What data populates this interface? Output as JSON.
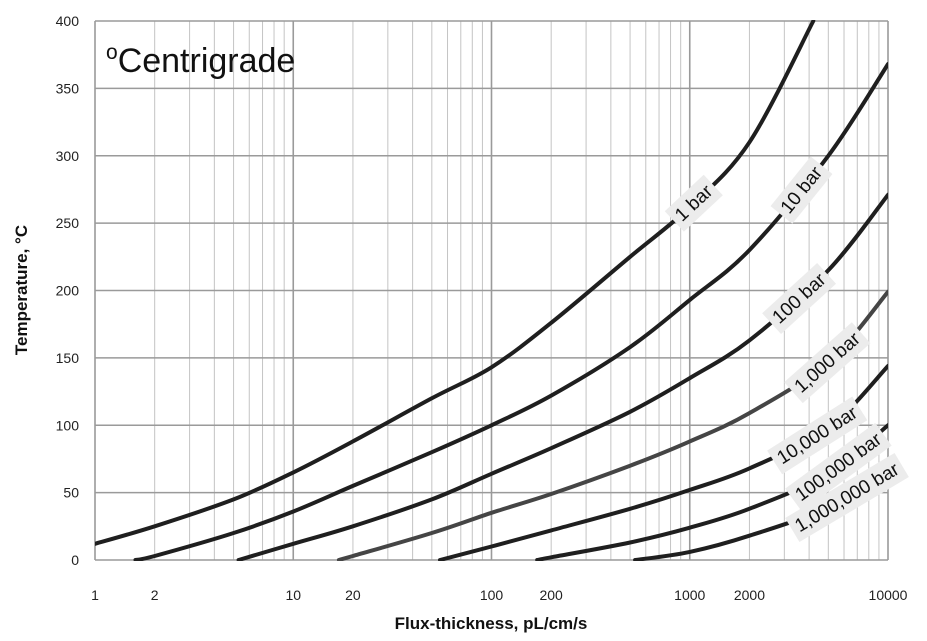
{
  "chart_data": {
    "type": "line",
    "title": "",
    "annotation": {
      "prefix": "o",
      "text": "Centrigrade"
    },
    "xlabel": "Flux-thickness, pL/cm/s",
    "ylabel": "Temperature, °C",
    "xscale": "log",
    "xlim": [
      1,
      10000
    ],
    "ylim": [
      0,
      400
    ],
    "grid": true,
    "x_ticks": [
      {
        "value": 1,
        "label": "1"
      },
      {
        "value": 2,
        "label": "2"
      },
      {
        "value": 10,
        "label": "10"
      },
      {
        "value": 20,
        "label": "20"
      },
      {
        "value": 100,
        "label": "100"
      },
      {
        "value": 200,
        "label": "200"
      },
      {
        "value": 1000,
        "label": "1000"
      },
      {
        "value": 2000,
        "label": "2000"
      },
      {
        "value": 10000,
        "label": "10000"
      }
    ],
    "y_ticks": [
      {
        "value": 0,
        "label": "0"
      },
      {
        "value": 50,
        "label": "50"
      },
      {
        "value": 100,
        "label": "100"
      },
      {
        "value": 150,
        "label": "150"
      },
      {
        "value": 200,
        "label": "200"
      },
      {
        "value": 250,
        "label": "250"
      },
      {
        "value": 300,
        "label": "300"
      },
      {
        "value": 350,
        "label": "350"
      },
      {
        "value": 400,
        "label": "400"
      }
    ],
    "series": [
      {
        "name": "1 bar",
        "color": "#1f1f1f",
        "x": [
          1,
          2,
          5,
          10,
          20,
          50,
          100,
          200,
          500,
          1000,
          2000,
          4200
        ],
        "y": [
          12,
          25,
          45,
          65,
          88,
          120,
          143,
          176,
          225,
          262,
          310,
          400
        ]
      },
      {
        "name": "10 bar",
        "color": "#1f1f1f",
        "x": [
          1.6,
          2,
          5,
          10,
          20,
          50,
          100,
          200,
          500,
          1000,
          2000,
          5000,
          10000
        ],
        "y": [
          0,
          3,
          20,
          36,
          55,
          80,
          100,
          122,
          158,
          193,
          230,
          300,
          368
        ]
      },
      {
        "name": "100 bar",
        "color": "#1f1f1f",
        "x": [
          5.3,
          10,
          20,
          50,
          100,
          200,
          500,
          1000,
          2000,
          5000,
          10000
        ],
        "y": [
          0,
          12,
          25,
          45,
          64,
          83,
          110,
          135,
          163,
          215,
          271
        ]
      },
      {
        "name": "1,000 bar",
        "color": "#454545",
        "x": [
          17,
          20,
          50,
          100,
          200,
          500,
          1000,
          2000,
          5000,
          10000
        ],
        "y": [
          0,
          3,
          20,
          35,
          49,
          70,
          88,
          109,
          147,
          199
        ]
      },
      {
        "name": "10,000 bar",
        "color": "#1f1f1f",
        "x": [
          55,
          100,
          200,
          500,
          1000,
          2000,
          5000,
          10000
        ],
        "y": [
          0,
          10,
          22,
          38,
          52,
          68,
          98,
          144
        ]
      },
      {
        "name": "100,000 bar",
        "color": "#1f1f1f",
        "x": [
          170,
          200,
          500,
          1000,
          2000,
          5000,
          10000
        ],
        "y": [
          0,
          2,
          13,
          24,
          38,
          64,
          100
        ]
      },
      {
        "name": "1,000,000 bar",
        "color": "#1f1f1f",
        "x": [
          530,
          1000,
          2000,
          5000,
          10000
        ],
        "y": [
          0,
          6,
          18,
          39,
          66
        ]
      }
    ]
  }
}
